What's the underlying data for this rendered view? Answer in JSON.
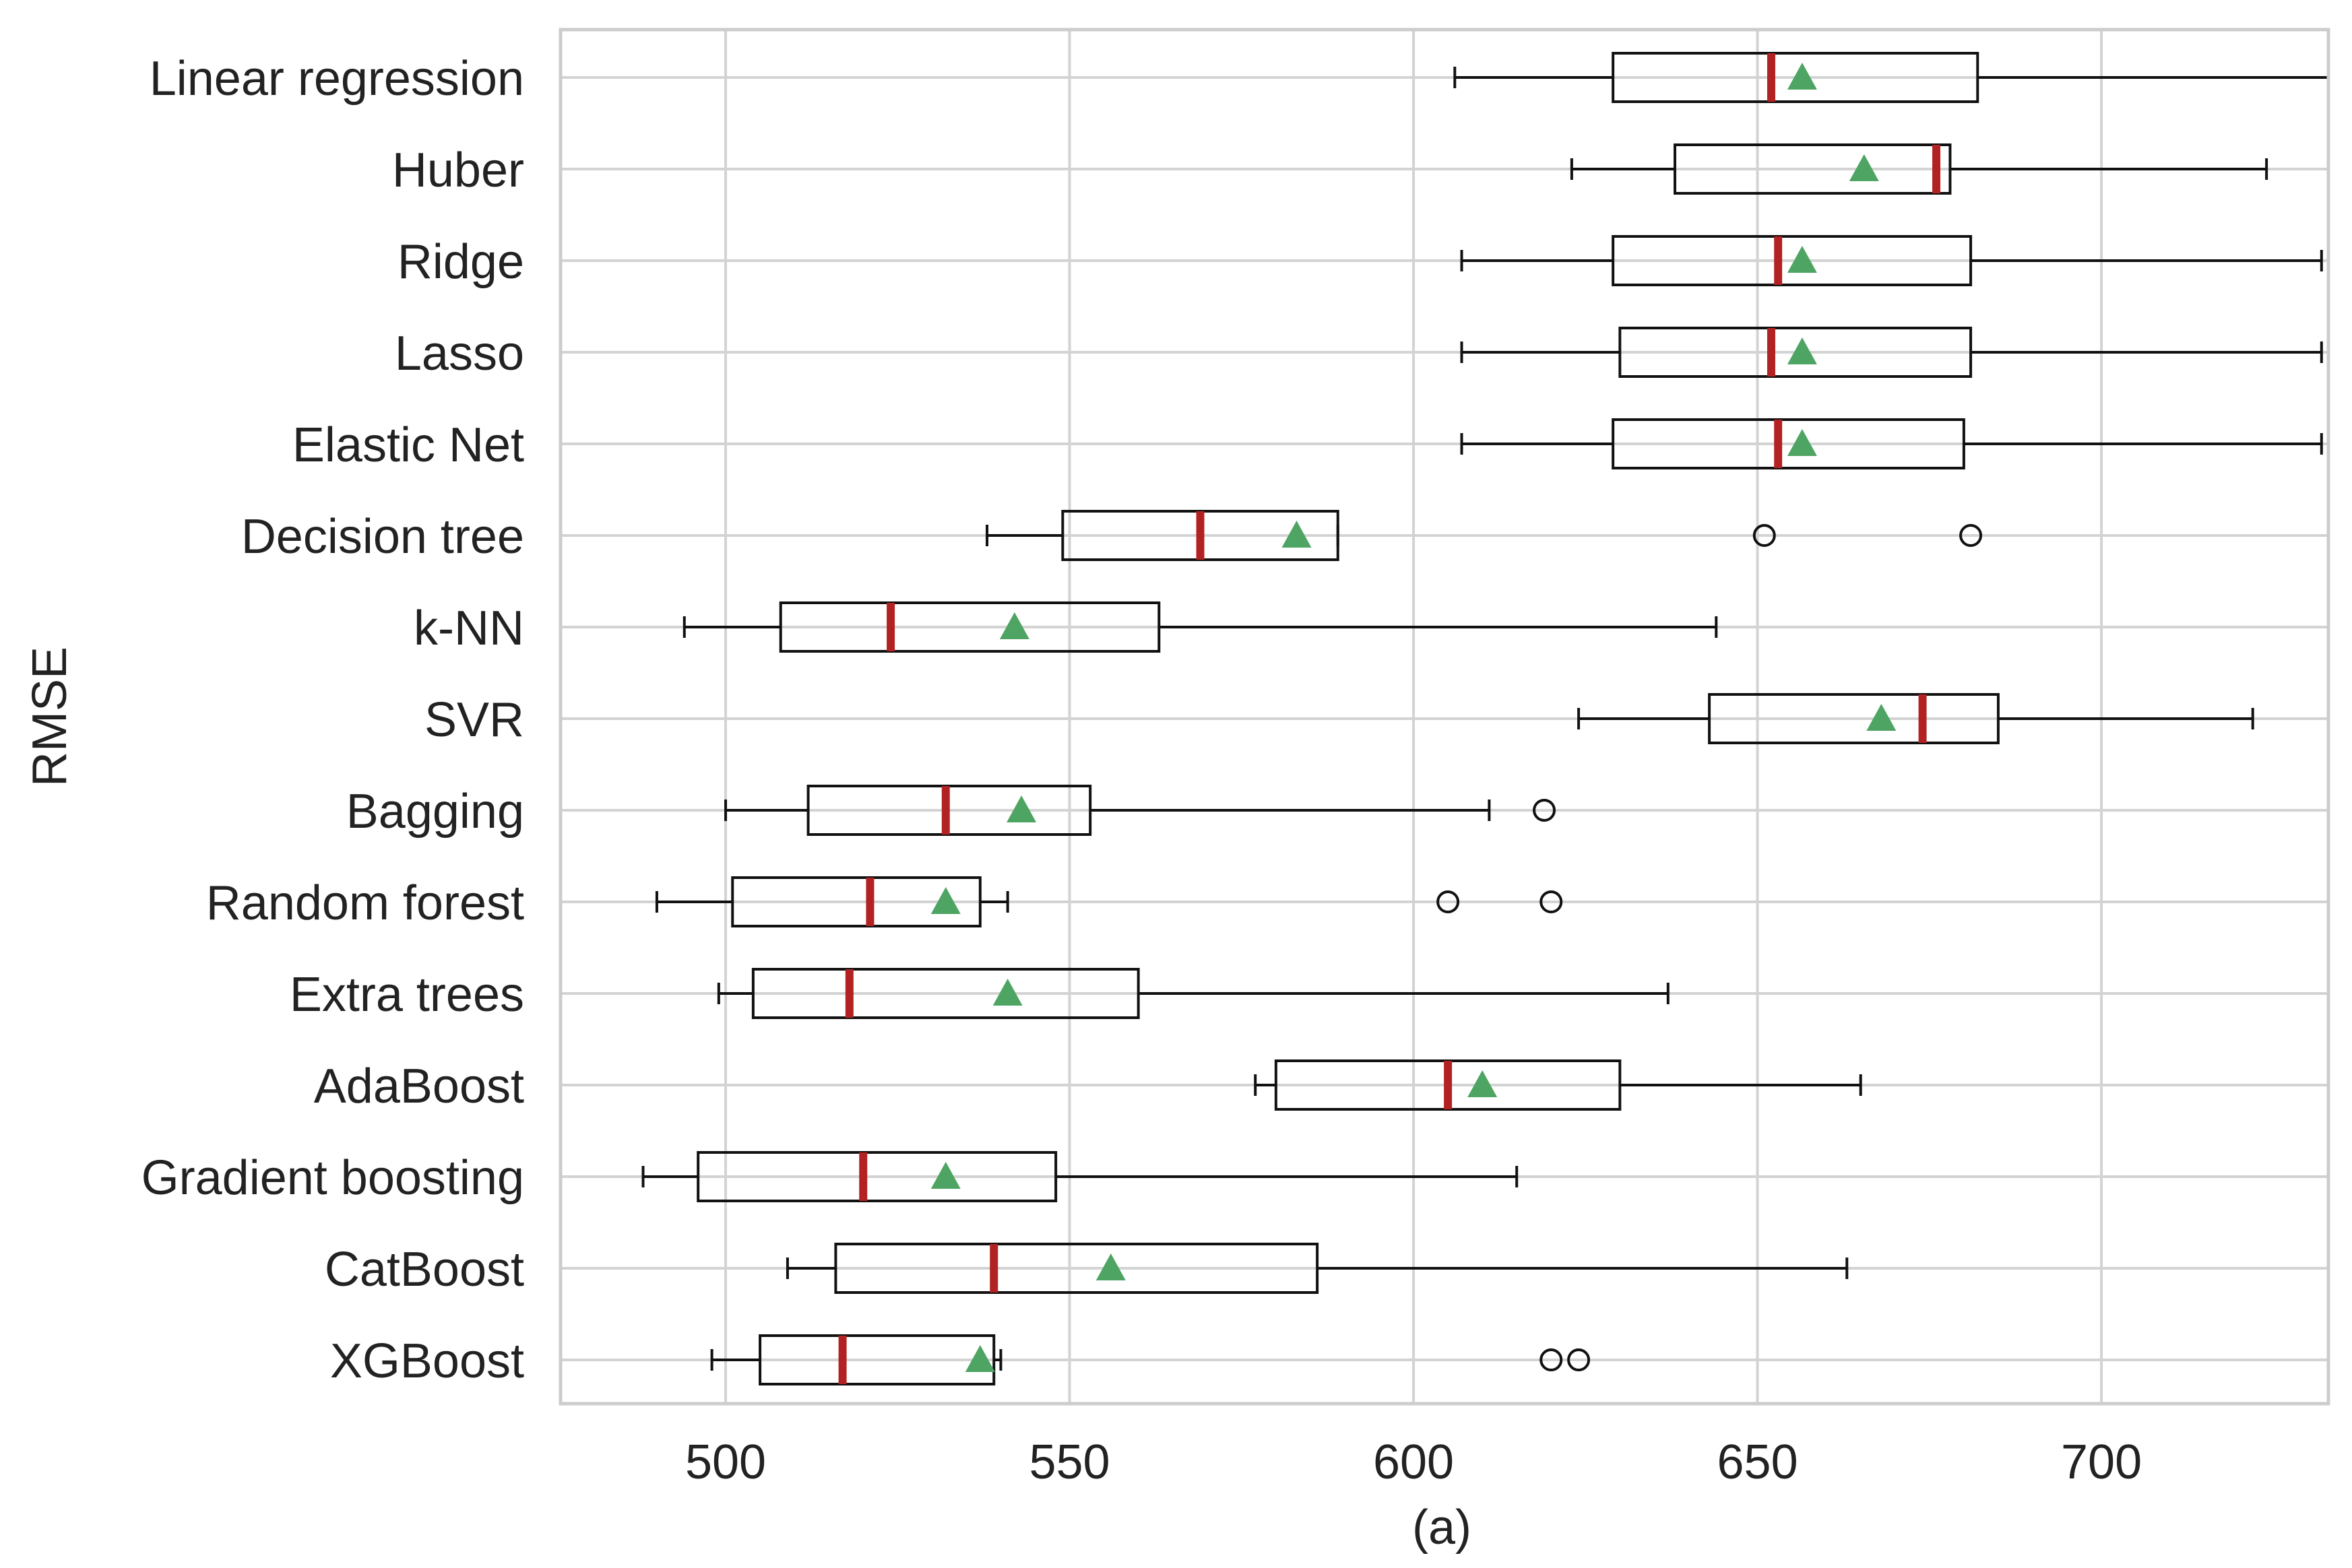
{
  "chart_data": {
    "type": "boxplot",
    "orientation": "horizontal",
    "title": "",
    "xlabel": "(a)",
    "ylabel": "RMSE",
    "xlim": [
      476,
      733
    ],
    "xticks": [
      500,
      550,
      600,
      650,
      700
    ],
    "grid": true,
    "colors": {
      "median": "#b22222",
      "mean_marker": "#4ea462",
      "box_edge": "#111111",
      "grid": "#d3d3d3"
    },
    "series": [
      {
        "name": "Linear regression",
        "whisker_low": 606,
        "q1": 629,
        "median": 652,
        "q3": 682,
        "whisker_high": 733,
        "mean": 656.5,
        "outliers": []
      },
      {
        "name": "Huber",
        "whisker_low": 623,
        "q1": 638,
        "median": 676,
        "q3": 678,
        "whisker_high": 724,
        "mean": 665.5,
        "outliers": []
      },
      {
        "name": "Ridge",
        "whisker_low": 607,
        "q1": 629,
        "median": 653,
        "q3": 681,
        "whisker_high": 732,
        "mean": 656.5,
        "outliers": []
      },
      {
        "name": "Lasso",
        "whisker_low": 607,
        "q1": 630,
        "median": 652,
        "q3": 681,
        "whisker_high": 732,
        "mean": 656.5,
        "outliers": []
      },
      {
        "name": "Elastic Net",
        "whisker_low": 607,
        "q1": 629,
        "median": 653,
        "q3": 680,
        "whisker_high": 732,
        "mean": 656.5,
        "outliers": []
      },
      {
        "name": "Decision tree",
        "whisker_low": 538,
        "q1": 549,
        "median": 569,
        "q3": 589,
        "whisker_high": 589,
        "mean": 583,
        "outliers": [
          651,
          681
        ]
      },
      {
        "name": "k-NN",
        "whisker_low": 494,
        "q1": 508,
        "median": 524,
        "q3": 563,
        "whisker_high": 644,
        "mean": 542,
        "outliers": []
      },
      {
        "name": "SVR",
        "whisker_low": 624,
        "q1": 643,
        "median": 674,
        "q3": 685,
        "whisker_high": 722,
        "mean": 668,
        "outliers": []
      },
      {
        "name": "Bagging",
        "whisker_low": 500,
        "q1": 512,
        "median": 532,
        "q3": 553,
        "whisker_high": 611,
        "mean": 543,
        "outliers": [
          619
        ]
      },
      {
        "name": "Random forest",
        "whisker_low": 490,
        "q1": 501,
        "median": 521,
        "q3": 537,
        "whisker_high": 541,
        "mean": 532,
        "outliers": [
          605,
          620
        ]
      },
      {
        "name": "Extra trees",
        "whisker_low": 499,
        "q1": 504,
        "median": 518,
        "q3": 560,
        "whisker_high": 637,
        "mean": 541,
        "outliers": []
      },
      {
        "name": "AdaBoost",
        "whisker_low": 577,
        "q1": 580,
        "median": 605,
        "q3": 630,
        "whisker_high": 665,
        "mean": 610,
        "outliers": []
      },
      {
        "name": "Gradient boosting",
        "whisker_low": 488,
        "q1": 496,
        "median": 520,
        "q3": 548,
        "whisker_high": 615,
        "mean": 532,
        "outliers": []
      },
      {
        "name": "CatBoost",
        "whisker_low": 509,
        "q1": 516,
        "median": 539,
        "q3": 586,
        "whisker_high": 663,
        "mean": 556,
        "outliers": []
      },
      {
        "name": "XGBoost",
        "whisker_low": 498,
        "q1": 505,
        "median": 517,
        "q3": 539,
        "whisker_high": 540,
        "mean": 537,
        "outliers": [
          620,
          624
        ]
      }
    ]
  }
}
